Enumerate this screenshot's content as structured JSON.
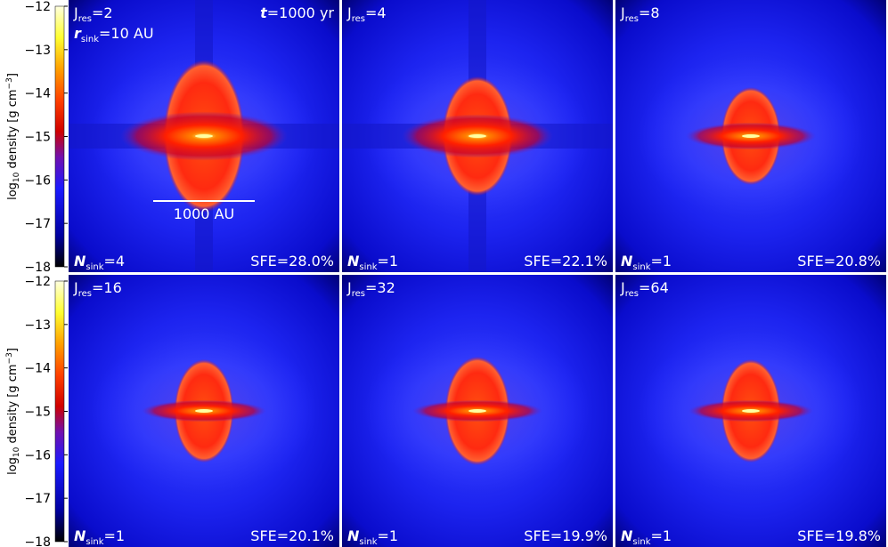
{
  "colorbar": {
    "label_parts": [
      "log",
      "10",
      " density [g cm",
      "−3",
      "]"
    ],
    "ticks": [
      {
        "value": -12,
        "label": "−12"
      },
      {
        "value": -13,
        "label": "−13"
      },
      {
        "value": -14,
        "label": "−14"
      },
      {
        "value": -15,
        "label": "−15"
      },
      {
        "value": -16,
        "label": "−16"
      },
      {
        "value": -17,
        "label": "−17"
      },
      {
        "value": -18,
        "label": "−18"
      }
    ],
    "lim": [
      -18,
      -12
    ]
  },
  "panels": [
    {
      "jres": {
        "symbol": "J",
        "sub": "res",
        "value": "=2"
      },
      "nsink": {
        "symbol": "N",
        "sub": "sink",
        "value": "=4"
      },
      "sfe": "SFE=28.0%"
    },
    {
      "jres": {
        "symbol": "J",
        "sub": "res",
        "value": "=4"
      },
      "nsink": {
        "symbol": "N",
        "sub": "sink",
        "value": "=1"
      },
      "sfe": "SFE=22.1%"
    },
    {
      "jres": {
        "symbol": "J",
        "sub": "res",
        "value": "=8"
      },
      "nsink": {
        "symbol": "N",
        "sub": "sink",
        "value": "=1"
      },
      "sfe": "SFE=20.8%"
    },
    {
      "jres": {
        "symbol": "J",
        "sub": "res",
        "value": "=16"
      },
      "nsink": {
        "symbol": "N",
        "sub": "sink",
        "value": "=1"
      },
      "sfe": "SFE=20.1%"
    },
    {
      "jres": {
        "symbol": "J",
        "sub": "res",
        "value": "=32"
      },
      "nsink": {
        "symbol": "N",
        "sub": "sink",
        "value": "=1"
      },
      "sfe": "SFE=19.9%"
    },
    {
      "jres": {
        "symbol": "J",
        "sub": "res",
        "value": "=64"
      },
      "nsink": {
        "symbol": "N",
        "sub": "sink",
        "value": "=1"
      },
      "sfe": "SFE=19.8%"
    }
  ],
  "annotations": {
    "time": {
      "symbol": "t",
      "value": "=1000 yr"
    },
    "sink_radius": {
      "symbol": "r",
      "sub": "sink",
      "value": "=10 AU"
    },
    "scale_bar": "1000 AU"
  }
}
